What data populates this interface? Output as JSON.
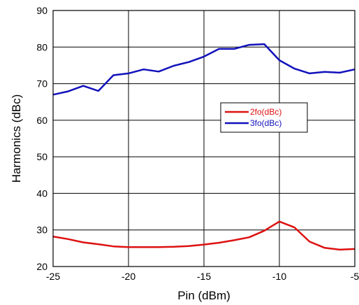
{
  "chart_data": {
    "type": "line",
    "xlabel": "Pin (dBm)",
    "ylabel": "Harmonics (dBc)",
    "xlim": [
      -25,
      -5
    ],
    "ylim": [
      20,
      90
    ],
    "xticks": [
      -25,
      -20,
      -15,
      -10,
      -5
    ],
    "yticks": [
      20,
      30,
      40,
      50,
      60,
      70,
      80,
      90
    ],
    "xtick_labels": [
      "-25",
      "-20",
      "-15",
      "-10",
      "-5"
    ],
    "ytick_labels": [
      "20",
      "30",
      "40",
      "50",
      "60",
      "70",
      "80",
      "90"
    ],
    "grid": true,
    "legend_position": "right-middle",
    "x": [
      -25,
      -24,
      -23,
      -22,
      -21,
      -20,
      -19,
      -18,
      -17,
      -16,
      -15,
      -14,
      -13,
      -12,
      -11,
      -10,
      -9,
      -8,
      -7,
      -6,
      -5
    ],
    "series": [
      {
        "name": "2fo(dBc)",
        "color": "#dd1111",
        "values": [
          28.2,
          27.5,
          26.6,
          26.1,
          25.5,
          25.3,
          25.3,
          25.3,
          25.4,
          25.6,
          26.0,
          26.5,
          27.2,
          28.0,
          29.8,
          32.3,
          30.7,
          26.8,
          25.1,
          24.6,
          24.8
        ]
      },
      {
        "name": "3fo(dBc)",
        "color": "#1111bb",
        "values": [
          67.0,
          67.9,
          69.4,
          68.0,
          72.3,
          72.8,
          73.9,
          73.3,
          74.9,
          75.9,
          77.4,
          79.5,
          79.5,
          80.6,
          80.8,
          76.4,
          74.1,
          72.8,
          73.2,
          73.0,
          73.9
        ]
      }
    ]
  }
}
